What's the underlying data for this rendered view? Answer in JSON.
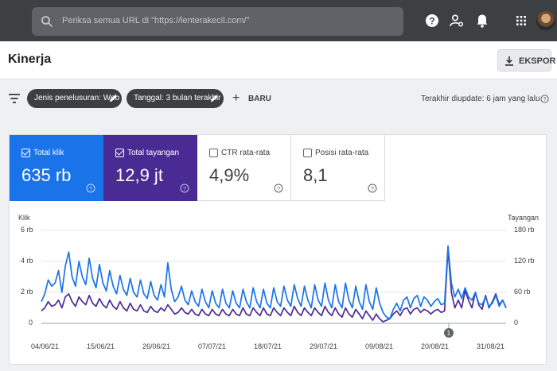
{
  "topbar": {
    "search": {
      "placeholder": "Periksa semua URL di \"https://lenterakecil.com/\"",
      "icon": "search-icon"
    },
    "icons": [
      "help-icon",
      "manage-accounts-icon",
      "notifications-icon",
      "apps-icon"
    ],
    "avatar": "avatar"
  },
  "header": {
    "title": "Kinerja",
    "export_label": "EKSPOR"
  },
  "filters": {
    "chips": [
      {
        "label": "Jenis penelusuran: Web"
      },
      {
        "label": "Tanggal: 3 bulan terakhir"
      }
    ],
    "new_label": "BARU",
    "last_updated": "Terakhir diupdate: 6 jam yang lalu"
  },
  "metrics": [
    {
      "label": "Total klik",
      "value": "635 rb",
      "checked": true,
      "color": "#1a73e8"
    },
    {
      "label": "Total tayangan",
      "value": "12,9 jt",
      "checked": true,
      "color": "#4a2b93"
    },
    {
      "label": "CTR rata-rata",
      "value": "4,9%",
      "checked": false
    },
    {
      "label": "Posisi rata-rata",
      "value": "8,1",
      "checked": false
    }
  ],
  "chart_data": {
    "type": "line",
    "y_left_label": "Klik",
    "y_right_label": "Tayangan",
    "y_left_ticks": [
      "6 rb",
      "4 rb",
      "2 rb",
      "0"
    ],
    "y_right_ticks": [
      "180 rb",
      "120 rb",
      "60 rb",
      "0"
    ],
    "y_left_range": [
      0,
      6000
    ],
    "y_right_range": [
      0,
      180000
    ],
    "x_ticks": [
      "04/06/21",
      "15/06/21",
      "26/06/21",
      "07/07/21",
      "18/07/21",
      "29/07/21",
      "09/08/21",
      "20/08/21",
      "31/08/21"
    ],
    "annotation": "1",
    "series": [
      {
        "name": "Total klik",
        "axis": "left",
        "color": "#1a73e8",
        "values": [
          1400,
          1900,
          2800,
          2400,
          2600,
          3400,
          2000,
          3700,
          4600,
          3000,
          2400,
          4000,
          3000,
          2500,
          4200,
          2900,
          2300,
          3800,
          2600,
          2100,
          3400,
          2400,
          1900,
          3100,
          2200,
          1800,
          2900,
          2000,
          1700,
          2800,
          1900,
          1600,
          2700,
          1800,
          1500,
          2500,
          1700,
          3900,
          2200,
          1400,
          1700,
          2400,
          1500,
          1200,
          2100,
          1400,
          1100,
          2200,
          1400,
          1000,
          2100,
          1300,
          1000,
          2200,
          1300,
          1000,
          2100,
          1300,
          1000,
          2200,
          1400,
          1000,
          2300,
          1400,
          1000,
          2200,
          1300,
          1000,
          2300,
          1400,
          1100,
          2400,
          1500,
          1100,
          2500,
          1600,
          1100,
          2400,
          1500,
          1000,
          2500,
          1500,
          1100,
          2600,
          1500,
          1000,
          2500,
          1400,
          1000,
          2600,
          1500,
          1000,
          2400,
          1400,
          900,
          2500,
          1400,
          900,
          2300,
          1300,
          700,
          400,
          300,
          900,
          1300,
          800,
          1500,
          1700,
          1000,
          1600,
          1800,
          1100,
          1700,
          1500,
          1100,
          1400,
          1600,
          1200,
          1300,
          5000,
          2600,
          1700,
          2200,
          1600,
          2300,
          1700,
          1500,
          2000,
          1300,
          1200,
          1700,
          1100,
          1300,
          1800,
          1100,
          1500,
          1000
        ]
      },
      {
        "name": "Total tayangan",
        "axis": "right",
        "color": "#4a2b93",
        "values": [
          24000,
          30000,
          42000,
          33000,
          36000,
          45000,
          30000,
          51000,
          57000,
          42000,
          33000,
          51000,
          42000,
          36000,
          54000,
          39000,
          33000,
          48000,
          36000,
          30000,
          45000,
          33000,
          27000,
          42000,
          30000,
          24000,
          39000,
          27000,
          24000,
          36000,
          24000,
          21000,
          33000,
          24000,
          21000,
          30000,
          24000,
          36000,
          27000,
          18000,
          21000,
          30000,
          21000,
          18000,
          27000,
          18000,
          15000,
          27000,
          18000,
          15000,
          27000,
          18000,
          15000,
          27000,
          18000,
          15000,
          27000,
          18000,
          15000,
          30000,
          18000,
          15000,
          30000,
          21000,
          15000,
          30000,
          18000,
          15000,
          30000,
          21000,
          15000,
          30000,
          21000,
          15000,
          33000,
          21000,
          15000,
          30000,
          21000,
          15000,
          30000,
          21000,
          15000,
          33000,
          21000,
          15000,
          30000,
          18000,
          12000,
          30000,
          18000,
          12000,
          27000,
          18000,
          9000,
          24000,
          15000,
          6000,
          18000,
          9000,
          3000,
          6000,
          9000,
          18000,
          24000,
          15000,
          27000,
          30000,
          18000,
          27000,
          30000,
          21000,
          27000,
          24000,
          18000,
          24000,
          27000,
          21000,
          24000,
          144000,
          60000,
          30000,
          45000,
          30000,
          63000,
          45000,
          30000,
          60000,
          36000,
          27000,
          54000,
          30000,
          42000,
          57000,
          36000,
          45000,
          30000
        ]
      }
    ]
  }
}
